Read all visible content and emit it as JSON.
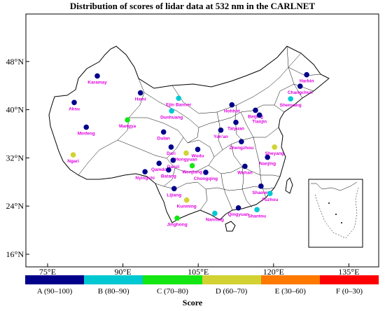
{
  "title": "Distribution of scores of lidar data at 532 nm in the CARLNET",
  "axes": {
    "x_ticks": [
      "75°E",
      "90°E",
      "105°E",
      "120°E",
      "135°E"
    ],
    "y_ticks": [
      "48°N",
      "40°N",
      "32°N",
      "24°N",
      "16°N"
    ]
  },
  "legend": {
    "title": "Score",
    "categories": [
      {
        "label": "A (90–100)",
        "color": "#00008b"
      },
      {
        "label": "B (80–90)",
        "color": "#00c8d2"
      },
      {
        "label": "C (70–80)",
        "color": "#14e614"
      },
      {
        "label": "D (60–70)",
        "color": "#d2d232"
      },
      {
        "label": "E (30–60)",
        "color": "#ff7800"
      },
      {
        "label": "F (0–30)",
        "color": "#ff0000"
      }
    ]
  },
  "stations": [
    {
      "name": "Karamay",
      "lon": 84.9,
      "lat": 45.6,
      "grade": "A"
    },
    {
      "name": "Aksu",
      "lon": 80.3,
      "lat": 41.2,
      "grade": "A"
    },
    {
      "name": "Minfeng",
      "lon": 82.7,
      "lat": 37.1,
      "grade": "A"
    },
    {
      "name": "Hami",
      "lon": 93.5,
      "lat": 42.8,
      "grade": "A"
    },
    {
      "name": "Ejin Banner",
      "lon": 101.1,
      "lat": 41.9,
      "grade": "B"
    },
    {
      "name": "Dunhuang",
      "lon": 99.7,
      "lat": 39.8,
      "grade": "B"
    },
    {
      "name": "Mangya",
      "lon": 90.9,
      "lat": 38.3,
      "grade": "C"
    },
    {
      "name": "Dulan",
      "lon": 98.1,
      "lat": 36.3,
      "grade": "A"
    },
    {
      "name": "Harbin",
      "lon": 126.6,
      "lat": 45.8,
      "grade": "A"
    },
    {
      "name": "Changchun",
      "lon": 125.3,
      "lat": 43.9,
      "grade": "A"
    },
    {
      "name": "Shenyang",
      "lon": 123.4,
      "lat": 41.8,
      "grade": "B"
    },
    {
      "name": "Hohhot",
      "lon": 111.7,
      "lat": 40.8,
      "grade": "A"
    },
    {
      "name": "Beijing",
      "lon": 116.4,
      "lat": 39.9,
      "grade": "A"
    },
    {
      "name": "Tianjin",
      "lon": 117.2,
      "lat": 39.1,
      "grade": "A"
    },
    {
      "name": "Taiyuan",
      "lon": 112.5,
      "lat": 37.9,
      "grade": "A"
    },
    {
      "name": "Yan'an",
      "lon": 109.5,
      "lat": 36.6,
      "grade": "A"
    },
    {
      "name": "Zhengzhou",
      "lon": 113.6,
      "lat": 34.7,
      "grade": "A"
    },
    {
      "name": "Sheyang",
      "lon": 120.2,
      "lat": 33.8,
      "grade": "D"
    },
    {
      "name": "Ngari",
      "lon": 80.1,
      "lat": 32.5,
      "grade": "D"
    },
    {
      "name": "Nyingchi",
      "lon": 94.4,
      "lat": 29.7,
      "grade": "A"
    },
    {
      "name": "Qamdo",
      "lon": 97.2,
      "lat": 31.1,
      "grade": "A"
    },
    {
      "name": "Ganzi",
      "lon": 100.0,
      "lat": 31.6,
      "grade": "A"
    },
    {
      "name": "Dari",
      "lon": 99.6,
      "lat": 33.8,
      "grade": "A"
    },
    {
      "name": "Hongyuan",
      "lon": 102.6,
      "lat": 32.8,
      "grade": "D"
    },
    {
      "name": "Wudu",
      "lon": 104.9,
      "lat": 33.4,
      "grade": "A"
    },
    {
      "name": "Batang",
      "lon": 99.1,
      "lat": 30.0,
      "grade": "A"
    },
    {
      "name": "Wenjiang",
      "lon": 103.8,
      "lat": 30.7,
      "grade": "C"
    },
    {
      "name": "Nanjing",
      "lon": 118.8,
      "lat": 32.1,
      "grade": "A"
    },
    {
      "name": "Lijiang",
      "lon": 100.2,
      "lat": 26.9,
      "grade": "A"
    },
    {
      "name": "Kunming",
      "lon": 102.7,
      "lat": 25.0,
      "grade": "D"
    },
    {
      "name": "Nanning",
      "lon": 108.3,
      "lat": 22.8,
      "grade": "B"
    },
    {
      "name": "Jinghong",
      "lon": 100.8,
      "lat": 22.0,
      "grade": "C"
    },
    {
      "name": "Qingyuan",
      "lon": 113.0,
      "lat": 23.7,
      "grade": "A"
    },
    {
      "name": "Shantou",
      "lon": 116.7,
      "lat": 23.4,
      "grade": "B"
    },
    {
      "name": "Shaowu",
      "lon": 117.5,
      "lat": 27.3,
      "grade": "A"
    },
    {
      "name": "Fuzhou",
      "lon": 119.3,
      "lat": 26.1,
      "grade": "B"
    },
    {
      "name": "Wuhan",
      "lon": 114.3,
      "lat": 30.6,
      "grade": "A"
    },
    {
      "name": "Chongqing",
      "lon": 106.5,
      "lat": 29.6,
      "grade": "A"
    }
  ]
}
